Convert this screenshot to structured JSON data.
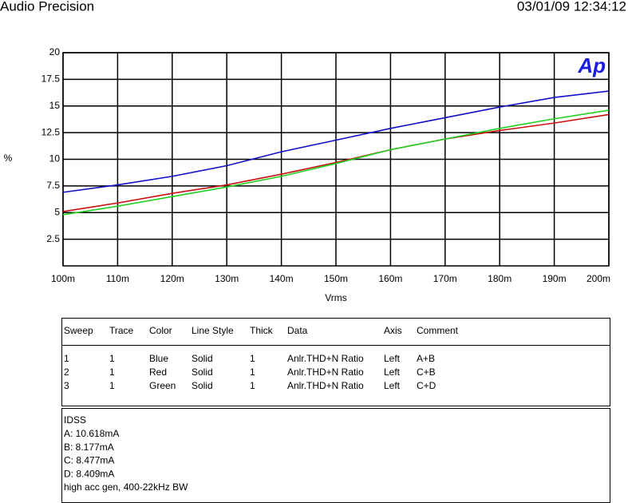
{
  "header": {
    "title": "Audio Precision",
    "timestamp": "03/01/09 12:34:12"
  },
  "chart_data": {
    "type": "line",
    "logo": "Ap",
    "y_label": "%",
    "x_label": "Vrms",
    "x": [
      0.1,
      0.11,
      0.12,
      0.13,
      0.14,
      0.15,
      0.16,
      0.17,
      0.18,
      0.19,
      0.2
    ],
    "xlim": [
      0.1,
      0.2
    ],
    "xticks": [
      {
        "value": 0.1,
        "label": "100m"
      },
      {
        "value": 0.11,
        "label": "110m"
      },
      {
        "value": 0.12,
        "label": "120m"
      },
      {
        "value": 0.13,
        "label": "130m"
      },
      {
        "value": 0.14,
        "label": "140m"
      },
      {
        "value": 0.15,
        "label": "150m"
      },
      {
        "value": 0.16,
        "label": "160m"
      },
      {
        "value": 0.17,
        "label": "170m"
      },
      {
        "value": 0.18,
        "label": "180m"
      },
      {
        "value": 0.19,
        "label": "190m"
      },
      {
        "value": 0.2,
        "label": "200m"
      }
    ],
    "ylim": [
      0,
      20
    ],
    "yticks": [
      2.5,
      5,
      7.5,
      10,
      12.5,
      15,
      17.5,
      20
    ],
    "grid": true,
    "series": [
      {
        "name": "Blue",
        "color": "#1010c8",
        "values": [
          6.9,
          7.6,
          8.4,
          9.4,
          10.7,
          11.8,
          12.9,
          13.9,
          14.9,
          15.8,
          16.4
        ]
      },
      {
        "name": "Red",
        "color": "#c81010",
        "values": [
          5.1,
          5.9,
          6.8,
          7.6,
          8.6,
          9.7,
          10.9,
          11.9,
          12.7,
          13.4,
          14.2
        ]
      },
      {
        "name": "Green",
        "color": "#20d020",
        "values": [
          4.8,
          5.6,
          6.5,
          7.4,
          8.4,
          9.6,
          10.9,
          11.9,
          12.9,
          13.8,
          14.6
        ]
      }
    ]
  },
  "legend_table": {
    "columns": [
      "Sweep",
      "Trace",
      "Color",
      "Line Style",
      "Thick",
      "Data",
      "Axis",
      "Comment"
    ],
    "rows": [
      [
        "1",
        "1",
        "Blue",
        "Solid",
        "1",
        "Anlr.THD+N Ratio",
        "Left",
        "A+B"
      ],
      [
        "2",
        "1",
        "Red",
        "Solid",
        "1",
        "Anlr.THD+N Ratio",
        "Left",
        "C+B"
      ],
      [
        "3",
        "1",
        "Green",
        "Solid",
        "1",
        "Anlr.THD+N Ratio",
        "Left",
        "C+D"
      ]
    ]
  },
  "notes": [
    "IDSS",
    "A: 10.618mA",
    "B: 8.177mA",
    "C: 8.477mA",
    "D: 8.409mA",
    "high acc gen, 400-22kHz BW"
  ]
}
